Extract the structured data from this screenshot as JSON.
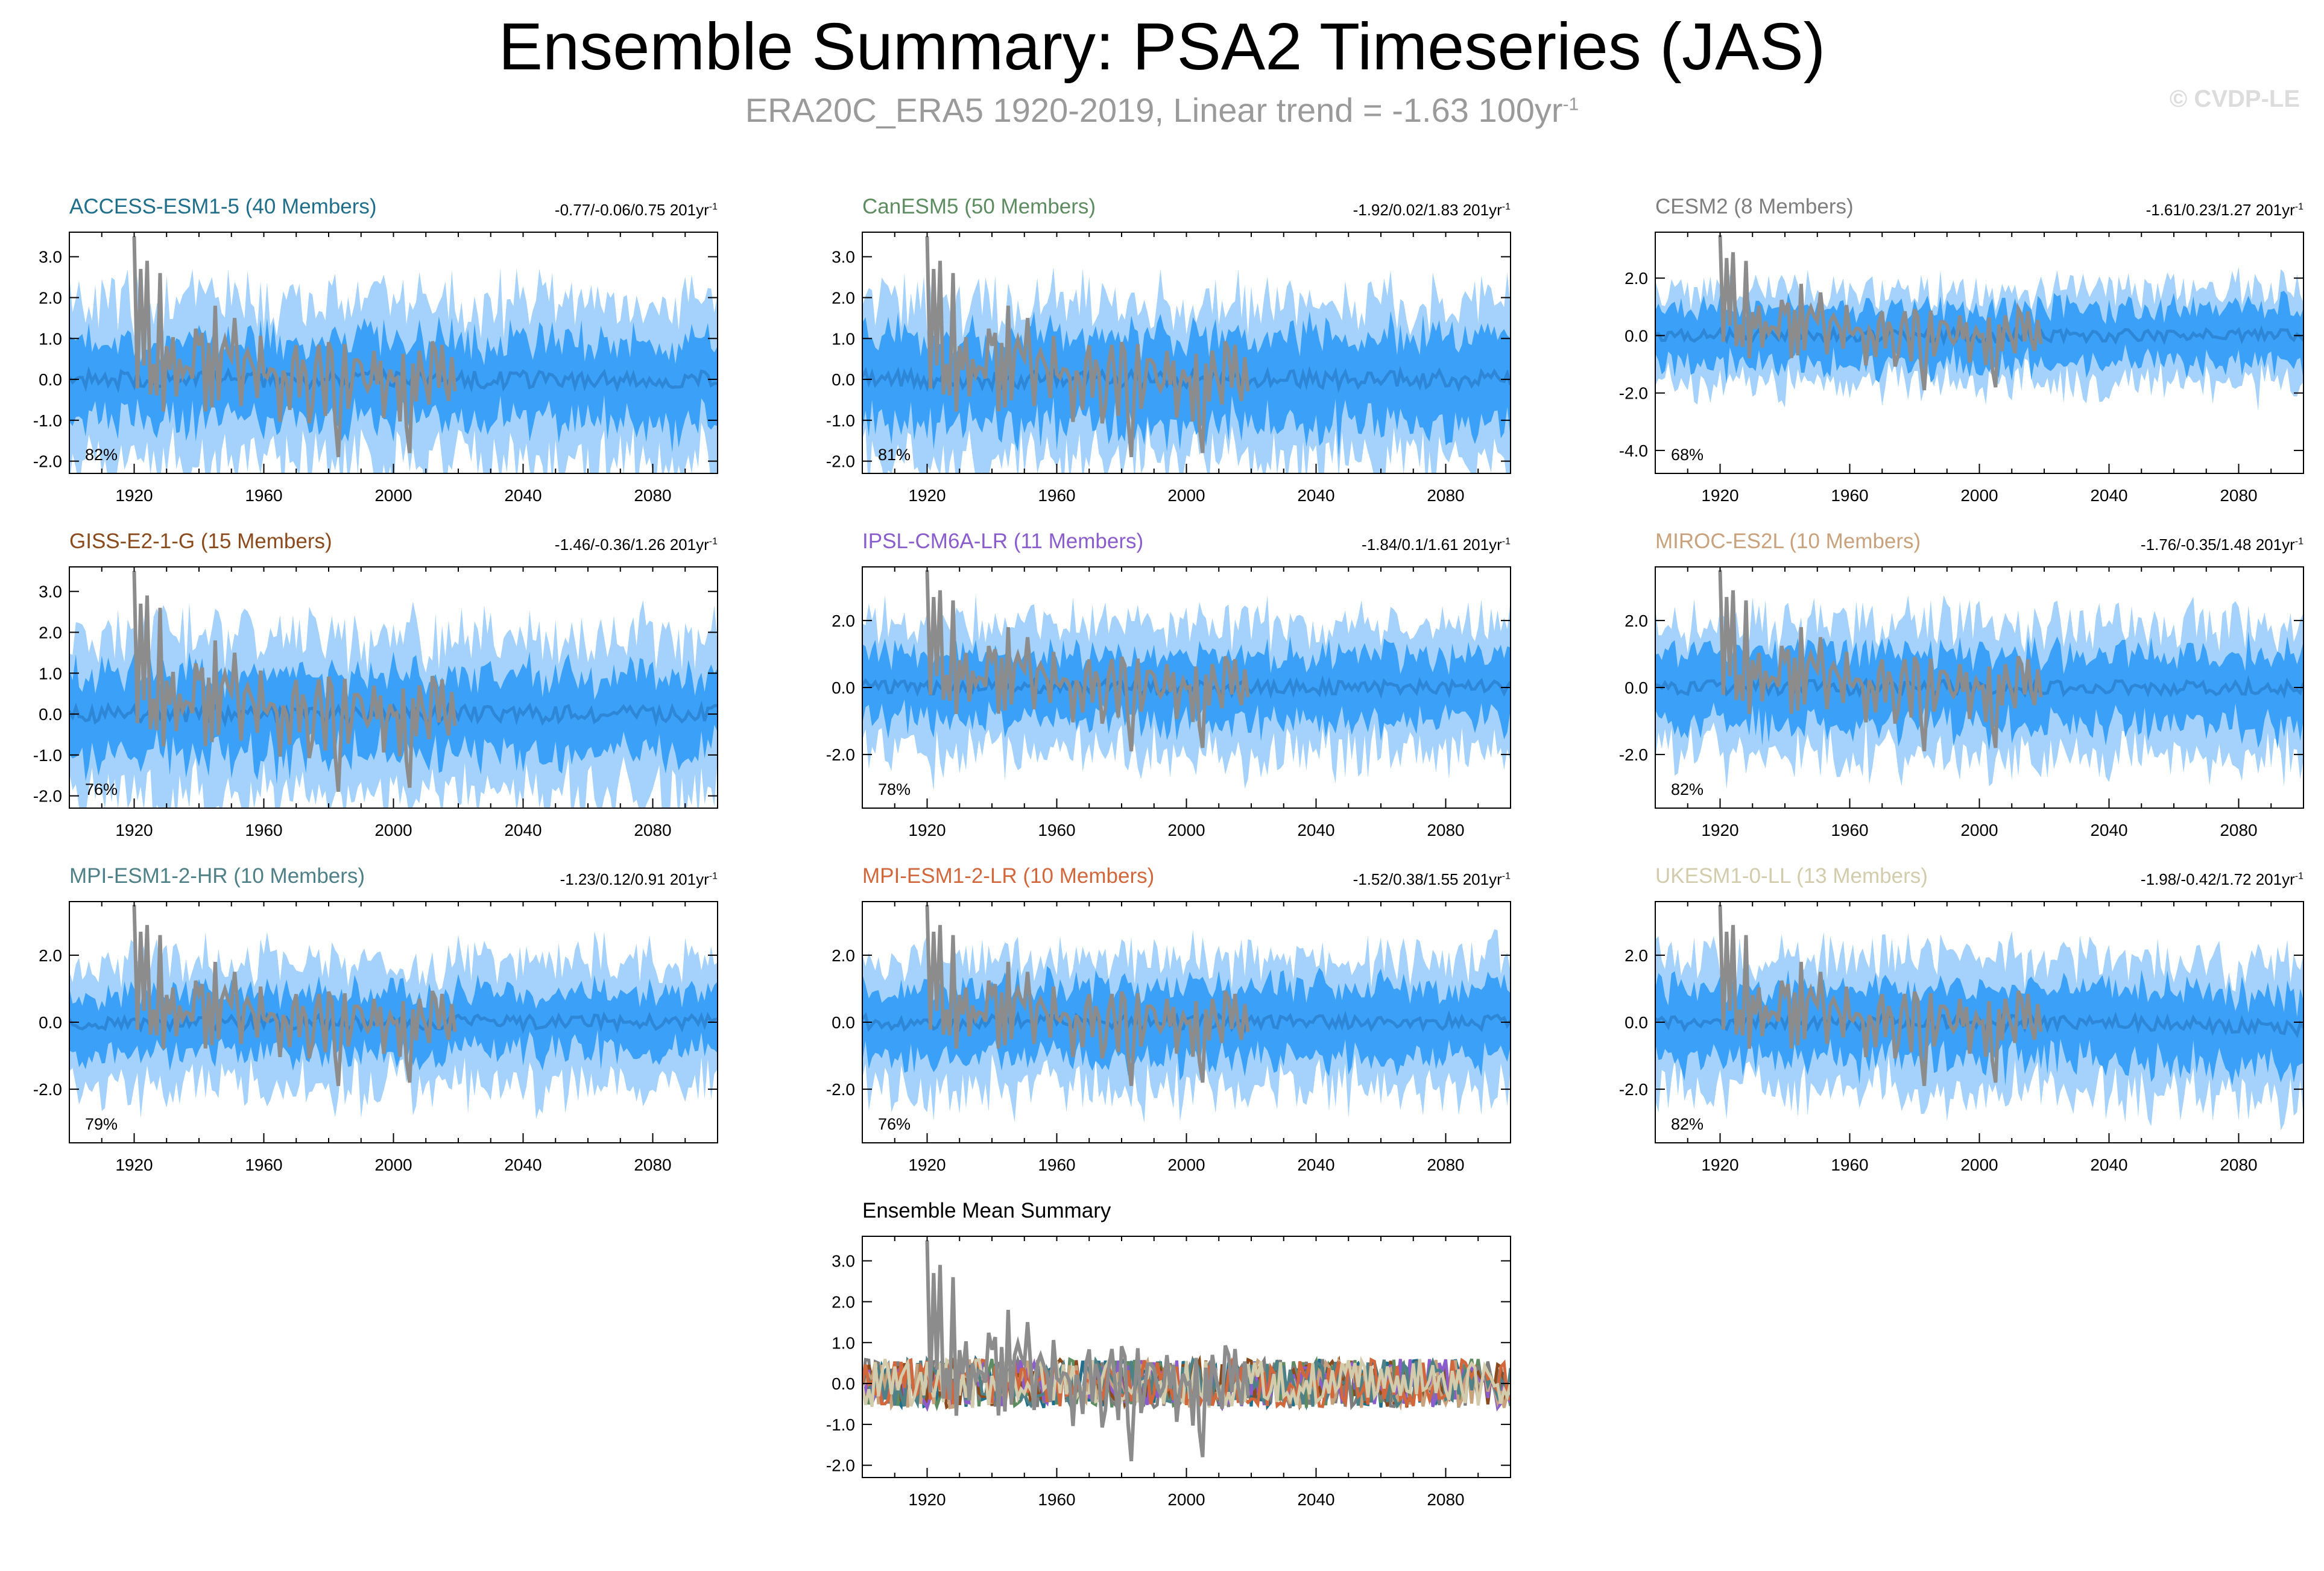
{
  "title": "Ensemble Summary: PSA2 Timeseries (JAS)",
  "subtitle": {
    "text": "ERA20C_ERA5 1920-2019, Linear trend = -1.63 100yr",
    "superscript": "-1"
  },
  "credit": "© CVDP-LE",
  "colors": {
    "outer_band": "#a4d2fc",
    "inner_band": "#3aa0f8",
    "ensemble_mean": "#2d86d6",
    "observed": "#8c8c8c"
  },
  "chart_data": [
    {
      "type": "area",
      "title": "ACCESS-ESM1-5 (40 Members)",
      "title_color": "#1f6f8c",
      "stats": "-0.77/-0.06/0.75 201yr",
      "stats_sup": "-1",
      "percent": "82%",
      "xlim": [
        1900,
        2100
      ],
      "xticks": [
        1920,
        1960,
        2000,
        2040,
        2080
      ],
      "ylim": [
        -2.3,
        3.6
      ],
      "yticks": [
        3.0,
        2.0,
        1.0,
        0.0,
        -1.0,
        -2.0
      ],
      "band_outer": 2.0,
      "band_inner": 1.0,
      "obs_scale": 1.0,
      "trend": 0.0
    },
    {
      "type": "area",
      "title": "CanESM5 (50 Members)",
      "title_color": "#5c8c5f",
      "stats": "-1.92/0.02/1.83 201yr",
      "stats_sup": "-1",
      "percent": "81%",
      "xlim": [
        1900,
        2100
      ],
      "xticks": [
        1920,
        1960,
        2000,
        2040,
        2080
      ],
      "ylim": [
        -2.3,
        3.6
      ],
      "yticks": [
        3.0,
        2.0,
        1.0,
        0.0,
        -1.0,
        -2.0
      ],
      "band_outer": 2.0,
      "band_inner": 1.1,
      "obs_scale": 1.0,
      "trend": 0.0
    },
    {
      "type": "area",
      "title": "CESM2 (8 Members)",
      "title_color": "#7e7e7e",
      "stats": "-1.61/0.23/1.27 201yr",
      "stats_sup": "-1",
      "percent": "68%",
      "xlim": [
        1900,
        2100
      ],
      "xticks": [
        1920,
        1960,
        2000,
        2040,
        2080
      ],
      "ylim": [
        -4.8,
        3.6
      ],
      "yticks": [
        2.0,
        0.0,
        -2.0,
        -4.0
      ],
      "band_outer": 1.7,
      "band_inner": 1.0,
      "obs_scale": 1.0,
      "trend": 0.0
    },
    {
      "type": "area",
      "title": "GISS-E2-1-G (15 Members)",
      "title_color": "#8b4a1c",
      "stats": "-1.46/-0.36/1.26 201yr",
      "stats_sup": "-1",
      "percent": "76%",
      "xlim": [
        1900,
        2100
      ],
      "xticks": [
        1920,
        1960,
        2000,
        2040,
        2080
      ],
      "ylim": [
        -2.3,
        3.6
      ],
      "yticks": [
        3.0,
        2.0,
        1.0,
        0.0,
        -1.0,
        -2.0
      ],
      "band_outer": 2.0,
      "band_inner": 1.0,
      "obs_scale": 1.0,
      "trend": 0.0
    },
    {
      "type": "area",
      "title": "IPSL-CM6A-LR (11 Members)",
      "title_color": "#8a5ccc",
      "stats": "-1.84/0.1/1.61 201yr",
      "stats_sup": "-1",
      "percent": "78%",
      "xlim": [
        1900,
        2100
      ],
      "xticks": [
        1920,
        1960,
        2000,
        2040,
        2080
      ],
      "ylim": [
        -3.6,
        3.6
      ],
      "yticks": [
        2.0,
        0.0,
        -2.0
      ],
      "band_outer": 2.0,
      "band_inner": 1.0,
      "obs_scale": 1.0,
      "trend": 0.0
    },
    {
      "type": "area",
      "title": "MIROC-ES2L (10 Members)",
      "title_color": "#c8a27c",
      "stats": "-1.76/-0.35/1.48 201yr",
      "stats_sup": "-1",
      "percent": "82%",
      "xlim": [
        1900,
        2100
      ],
      "xticks": [
        1920,
        1960,
        2000,
        2040,
        2080
      ],
      "ylim": [
        -3.6,
        3.6
      ],
      "yticks": [
        2.0,
        0.0,
        -2.0
      ],
      "band_outer": 2.0,
      "band_inner": 1.1,
      "obs_scale": 1.0,
      "trend": 0.0
    },
    {
      "type": "area",
      "title": "MPI-ESM1-2-HR (10 Members)",
      "title_color": "#4e8088",
      "stats": "-1.23/0.12/0.91 201yr",
      "stats_sup": "-1",
      "percent": "79%",
      "xlim": [
        1900,
        2100
      ],
      "xticks": [
        1920,
        1960,
        2000,
        2040,
        2080
      ],
      "ylim": [
        -3.6,
        3.6
      ],
      "yticks": [
        2.0,
        0.0,
        -2.0
      ],
      "band_outer": 1.9,
      "band_inner": 0.9,
      "obs_scale": 1.0,
      "trend": 0.0
    },
    {
      "type": "area",
      "title": "MPI-ESM1-2-LR (10 Members)",
      "title_color": "#d2673c",
      "stats": "-1.52/0.38/1.55 201yr",
      "stats_sup": "-1",
      "percent": "76%",
      "xlim": [
        1900,
        2100
      ],
      "xticks": [
        1920,
        1960,
        2000,
        2040,
        2080
      ],
      "ylim": [
        -3.6,
        3.6
      ],
      "yticks": [
        2.0,
        0.0,
        -2.0
      ],
      "band_outer": 2.0,
      "band_inner": 1.1,
      "obs_scale": 1.0,
      "trend": 0.0
    },
    {
      "type": "area",
      "title": "UKESM1-0-LL (13 Members)",
      "title_color": "#d2ccac",
      "stats": "-1.98/-0.42/1.72 201yr",
      "stats_sup": "-1",
      "percent": "82%",
      "xlim": [
        1900,
        2100
      ],
      "xticks": [
        1920,
        1960,
        2000,
        2040,
        2080
      ],
      "ylim": [
        -3.6,
        3.6
      ],
      "yticks": [
        2.0,
        0.0,
        -2.0
      ],
      "band_outer": 2.0,
      "band_inner": 1.1,
      "obs_scale": 1.0,
      "trend": -0.3
    },
    {
      "type": "line",
      "title": "Ensemble Mean Summary",
      "title_color": "#000000",
      "xlim": [
        1900,
        2100
      ],
      "xticks": [
        1920,
        1960,
        2000,
        2040,
        2080
      ],
      "ylim": [
        -2.3,
        3.6
      ],
      "yticks": [
        3.0,
        2.0,
        1.0,
        0.0,
        -1.0,
        -2.0
      ],
      "series_colors": [
        "#1f6f8c",
        "#5c8c5f",
        "#7e7e7e",
        "#8b4a1c",
        "#8a5ccc",
        "#c8a27c",
        "#4e8088",
        "#d2673c",
        "#d2ccac"
      ]
    }
  ]
}
